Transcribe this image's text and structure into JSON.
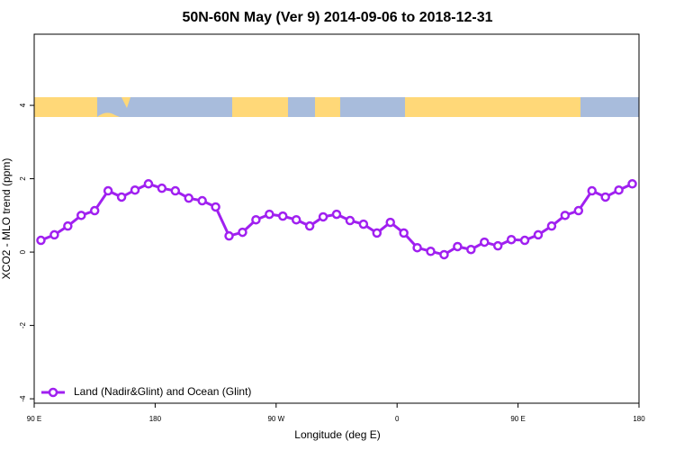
{
  "chart_data": {
    "type": "line",
    "title": "50N-60N May (Ver 9)   2014-09-06 to 2018-12-31",
    "x_label": "Longitude (deg E)",
    "y_label": "XCO2 - MLO trend (ppm)",
    "x": [
      95,
      105,
      115,
      125,
      135,
      145,
      155,
      165,
      175,
      185,
      195,
      205,
      215,
      225,
      235,
      245,
      255,
      265,
      275,
      285,
      295,
      305,
      315,
      325,
      335,
      345,
      355,
      365,
      375,
      385,
      395,
      405,
      415,
      425,
      435,
      445,
      455,
      465,
      475,
      485,
      495,
      505,
      515,
      525,
      535
    ],
    "series": [
      {
        "name": "Land (Nadir&Glint) and Ocean (Glint)",
        "color": "#a020f0",
        "values": [
          0.32,
          0.47,
          0.71,
          1.0,
          1.13,
          1.67,
          1.5,
          1.69,
          1.86,
          1.74,
          1.67,
          1.47,
          1.4,
          1.23,
          0.44,
          0.54,
          0.88,
          1.03,
          0.98,
          0.88,
          0.71,
          0.96,
          1.03,
          0.86,
          0.76,
          0.52,
          0.81,
          0.52,
          0.12,
          0.02,
          -0.07,
          0.15,
          0.07,
          0.27,
          0.17,
          0.34,
          0.32,
          0.47,
          0.71,
          1.0,
          1.13,
          1.67,
          1.5,
          1.69,
          1.86
        ]
      }
    ],
    "xlim": [
      90,
      540
    ],
    "xticks": [
      {
        "value": 90,
        "label": "90 E"
      },
      {
        "value": 180,
        "label": "180"
      },
      {
        "value": 270,
        "label": "90 W"
      },
      {
        "value": 360,
        "label": "0"
      },
      {
        "value": 450,
        "label": "90 E"
      },
      {
        "value": 540,
        "label": "180"
      }
    ],
    "ylim": [
      -4.12,
      5.94
    ],
    "yticks": [
      -4,
      -2,
      0,
      2,
      4
    ],
    "legend": "bottomleft",
    "grid": false
  }
}
